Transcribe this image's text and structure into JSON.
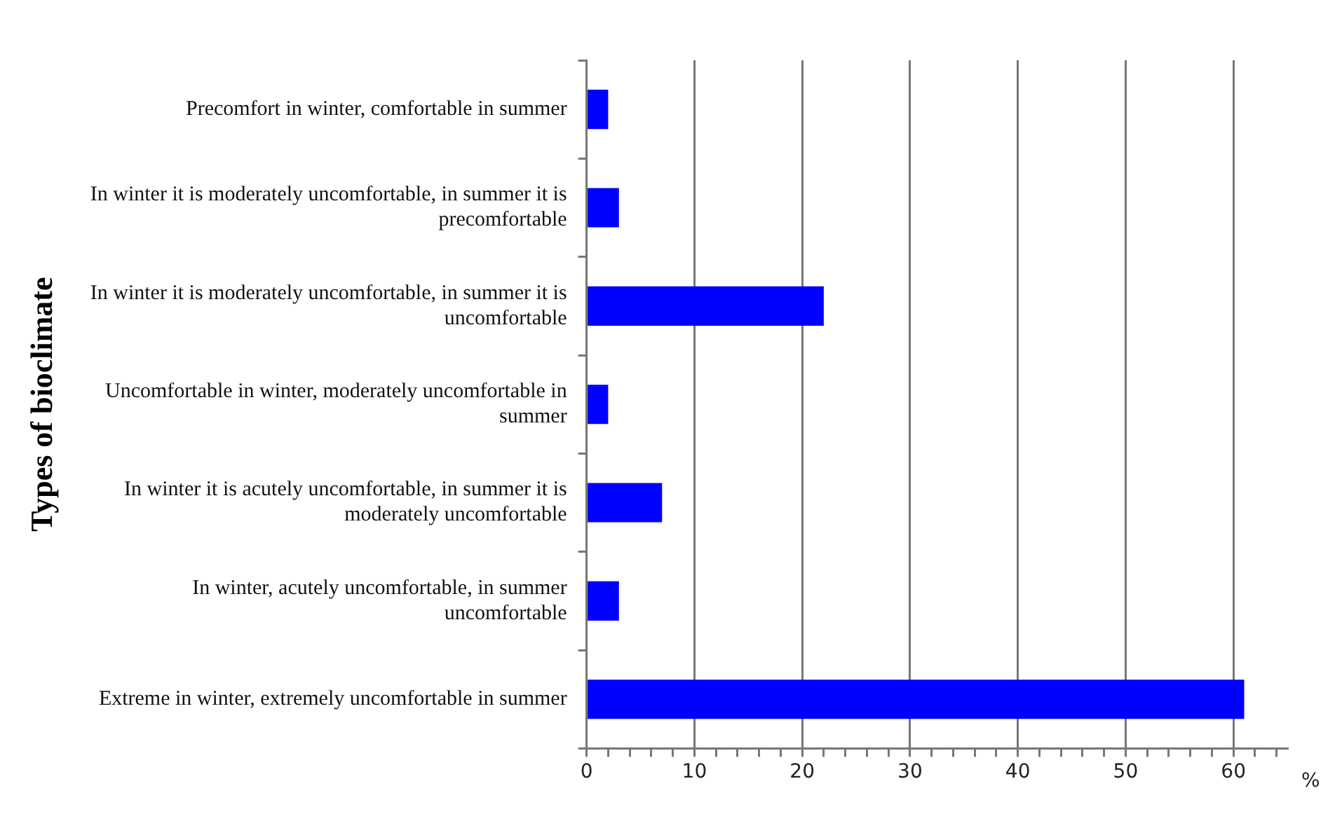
{
  "chart_data": {
    "type": "bar",
    "orientation": "horizontal",
    "ylabel": "Types of bioclimate",
    "xlabel": "%",
    "categories": [
      "Precomfort in winter, comfortable in summer",
      "In winter it is moderately uncomfortable, in summer it is precomfortable",
      "In winter it is moderately uncomfortable, in summer it is uncomfortable",
      "Uncomfortable in winter, moderately uncomfortable in summer",
      "In winter it is acutely uncomfortable, in summer it is moderately uncomfortable",
      "In winter, acutely uncomfortable, in summer uncomfortable",
      "Extreme in winter, extremely uncomfortable in summer"
    ],
    "values": [
      2,
      3,
      22,
      2,
      7,
      3,
      61
    ],
    "color": "#0000ff",
    "xlim": [
      0,
      65
    ],
    "xticks": [
      0,
      {
        "value": 2,
        "label": null
      },
      {
        "value": 4,
        "label": null
      },
      {
        "value": 6,
        "label": null
      },
      {
        "value": 8,
        "label": null
      },
      10,
      {
        "value": 12,
        "label": null
      },
      {
        "value": 14,
        "label": null
      },
      {
        "value": 16,
        "label": null
      },
      {
        "value": 18,
        "label": null
      },
      20,
      {
        "value": 22,
        "label": null
      },
      {
        "value": 24,
        "label": null
      },
      {
        "value": 26,
        "label": null
      },
      {
        "value": 28,
        "label": null
      },
      30,
      {
        "value": 32,
        "label": null
      },
      {
        "value": 34,
        "label": null
      },
      {
        "value": 36,
        "label": null
      },
      {
        "value": 38,
        "label": null
      },
      40,
      {
        "value": 42,
        "label": null
      },
      {
        "value": 44,
        "label": null
      },
      {
        "value": 46,
        "label": null
      },
      {
        "value": 48,
        "label": null
      },
      50,
      {
        "value": 52,
        "label": null
      },
      {
        "value": 54,
        "label": null
      },
      {
        "value": 56,
        "label": null
      },
      {
        "value": 58,
        "label": null
      },
      60,
      {
        "value": 62,
        "label": null
      },
      {
        "value": 64,
        "label": null
      }
    ],
    "grid": "x",
    "legend": false
  }
}
